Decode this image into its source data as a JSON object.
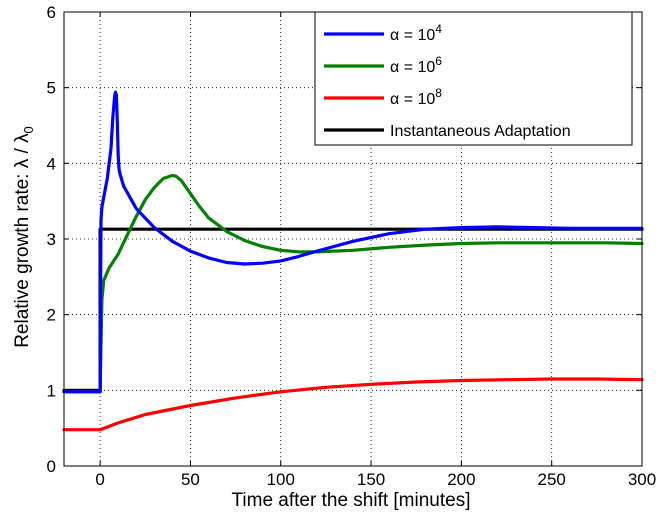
{
  "chart_data": {
    "type": "line",
    "xlabel": "Time after the shift [minutes]",
    "ylabel": "Relative growth rate: λ / λ",
    "ylabel_subscript": "0",
    "xlim": [
      -20,
      300
    ],
    "ylim": [
      0,
      6
    ],
    "xticks": [
      0,
      50,
      100,
      150,
      200,
      250,
      300
    ],
    "yticks": [
      0,
      1,
      2,
      3,
      4,
      5,
      6
    ],
    "grid": true,
    "legend_position": "top-right",
    "series": [
      {
        "name": "α = 10",
        "name_superscript": "4",
        "color": "#0000ff",
        "x": [
          -20,
          0,
          0.5,
          1,
          2,
          4,
          6,
          7,
          8,
          8.5,
          9,
          9.5,
          10,
          10.5,
          11,
          13,
          20,
          30,
          40,
          50,
          60,
          70,
          80,
          90,
          100,
          110,
          120,
          140,
          160,
          180,
          200,
          220,
          240,
          260,
          280,
          300
        ],
        "y": [
          0.98,
          0.98,
          3.25,
          3.42,
          3.55,
          3.8,
          4.2,
          4.6,
          4.88,
          4.94,
          4.9,
          4.55,
          4.1,
          3.92,
          3.86,
          3.7,
          3.4,
          3.15,
          2.97,
          2.84,
          2.75,
          2.69,
          2.67,
          2.68,
          2.71,
          2.77,
          2.84,
          2.97,
          3.07,
          3.13,
          3.15,
          3.16,
          3.15,
          3.14,
          3.14,
          3.14
        ]
      },
      {
        "name": "α = 10",
        "name_superscript": "6",
        "color": "#008000",
        "x": [
          -20,
          0,
          1,
          2,
          5,
          10,
          15,
          20,
          25,
          30,
          35,
          40,
          42,
          45,
          50,
          55,
          60,
          70,
          80,
          90,
          100,
          110,
          120,
          140,
          160,
          180,
          200,
          220,
          240,
          260,
          280,
          300
        ],
        "y": [
          0.98,
          0.98,
          2.2,
          2.45,
          2.62,
          2.8,
          3.05,
          3.3,
          3.52,
          3.68,
          3.8,
          3.84,
          3.83,
          3.77,
          3.6,
          3.43,
          3.28,
          3.1,
          2.98,
          2.9,
          2.85,
          2.83,
          2.83,
          2.85,
          2.89,
          2.92,
          2.94,
          2.95,
          2.95,
          2.95,
          2.95,
          2.94
        ]
      },
      {
        "name": "α = 10",
        "name_superscript": "8",
        "color": "#ff0000",
        "x": [
          -20,
          0,
          10,
          25,
          50,
          75,
          100,
          125,
          150,
          175,
          200,
          225,
          250,
          275,
          300
        ],
        "y": [
          0.48,
          0.48,
          0.57,
          0.68,
          0.8,
          0.9,
          0.98,
          1.04,
          1.08,
          1.11,
          1.13,
          1.14,
          1.15,
          1.15,
          1.14
        ]
      },
      {
        "name": "Instantaneous Adaptation",
        "color": "#000000",
        "x": [
          -20,
          0,
          0,
          300
        ],
        "y": [
          1.0,
          1.0,
          3.13,
          3.13
        ]
      }
    ]
  }
}
